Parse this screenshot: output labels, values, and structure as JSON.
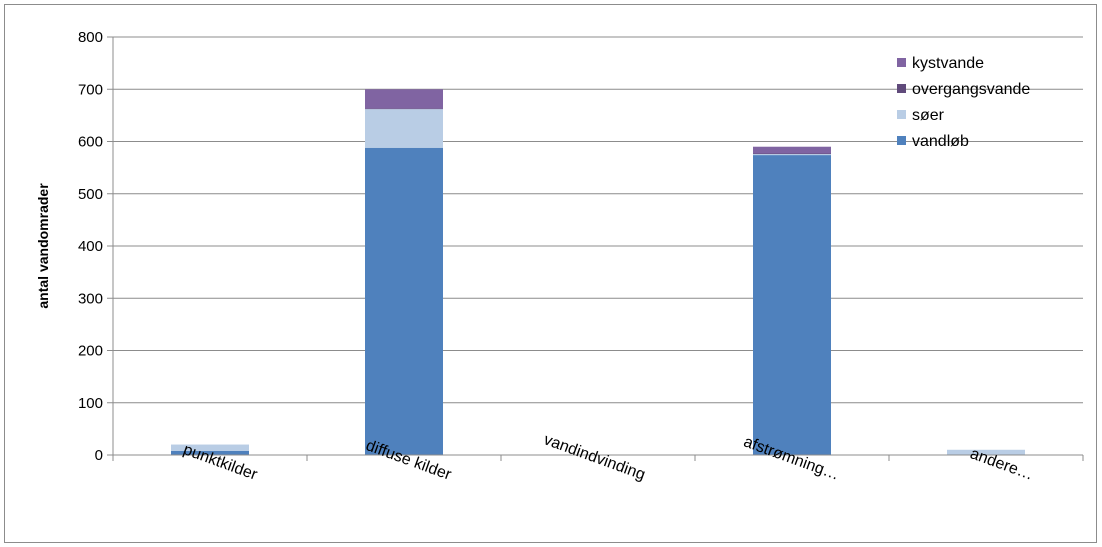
{
  "chart_data": {
    "type": "bar",
    "stacked": true,
    "title": "",
    "xlabel": "",
    "ylabel": "antal vandomrader",
    "ylim": [
      0,
      800
    ],
    "yticks": [
      0,
      100,
      200,
      300,
      400,
      500,
      600,
      700,
      800
    ],
    "categories": [
      "punktkilder",
      "diffuse kilder",
      "vandindvinding",
      "afstrømning…",
      "andere…"
    ],
    "series": [
      {
        "name": "vandløb",
        "color": "#4f81bd",
        "values": [
          8,
          588,
          0,
          574,
          0
        ]
      },
      {
        "name": "søer",
        "color": "#b9cde5",
        "values": [
          12,
          74,
          0,
          2,
          10
        ]
      },
      {
        "name": "overgangsvande",
        "color": "#604a7b",
        "values": [
          0,
          1,
          0,
          1,
          0
        ]
      },
      {
        "name": "kystvande",
        "color": "#8064a2",
        "values": [
          0,
          37,
          0,
          13,
          0
        ]
      }
    ],
    "legend_position": "top-right",
    "legend_order": [
      "kystvande",
      "overgangsvande",
      "søer",
      "vandløb"
    ],
    "grid": true
  }
}
